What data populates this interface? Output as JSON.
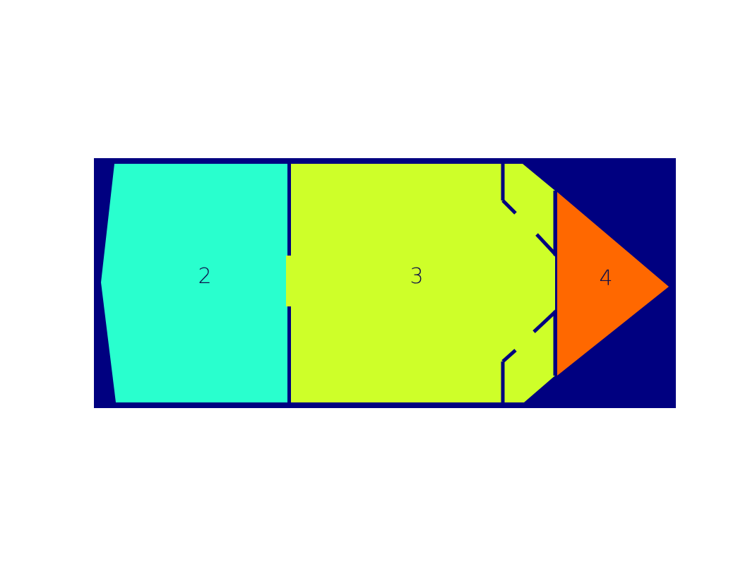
{
  "colors": {
    "background": "#ffffff",
    "boundary": "#000080",
    "region_2": "#29ffce",
    "region_3": "#ceff29",
    "region_4": "#ff6800",
    "label": "#0d0d4a"
  },
  "regions": [
    {
      "id": "region-2",
      "label": "2"
    },
    {
      "id": "region-3",
      "label": "3"
    },
    {
      "id": "region-4",
      "label": "4"
    }
  ]
}
